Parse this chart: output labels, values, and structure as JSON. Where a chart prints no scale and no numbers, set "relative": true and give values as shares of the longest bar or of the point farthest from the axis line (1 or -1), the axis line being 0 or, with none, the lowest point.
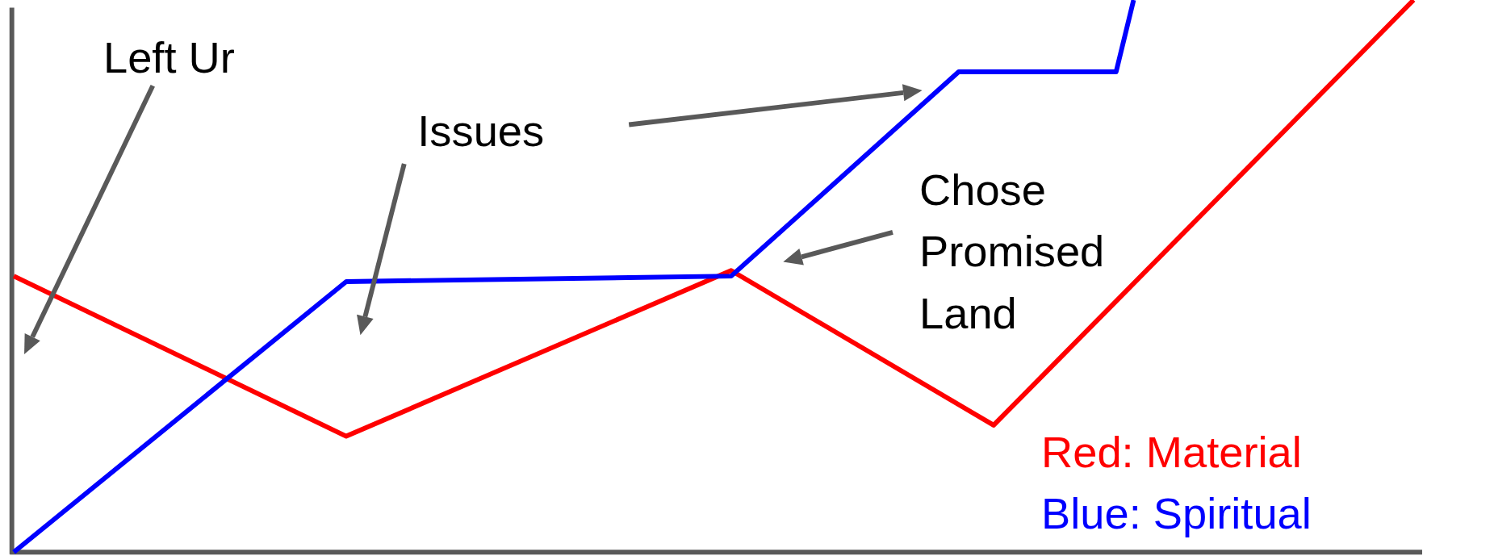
{
  "chart_data": {
    "type": "line",
    "relative": true,
    "categories": [
      null,
      null,
      null,
      null,
      null,
      null,
      null,
      null,
      null,
      null,
      null,
      null,
      null,
      null,
      null,
      null,
      null,
      null,
      null,
      null,
      null,
      null,
      null,
      null,
      null,
      null,
      null,
      null,
      null,
      null,
      null,
      null,
      null,
      null,
      null,
      null,
      null,
      null,
      null,
      null,
      null,
      null,
      null,
      null,
      null,
      null,
      null,
      null,
      null,
      null,
      null,
      null,
      null,
      null,
      null,
      null,
      null,
      null,
      null,
      null,
      null,
      null,
      null,
      null,
      null,
      null,
      null,
      null,
      null,
      null,
      null,
      null,
      null,
      null,
      null,
      null,
      null,
      null,
      null,
      null,
      null
    ],
    "annotations": [
      "Left Ur",
      "Issues",
      "Chose Promised Land"
    ],
    "series": [
      {
        "name": "Red: Material",
        "color": "#ff0000",
        "values": [
          0.5,
          null,
          null,
          null,
          null,
          null,
          null,
          null,
          null,
          null,
          null,
          null,
          null,
          null,
          null,
          null,
          null,
          null,
          null,
          0.21,
          null,
          null,
          null,
          null,
          null,
          null,
          null,
          null,
          null,
          null,
          null,
          null,
          null,
          null,
          null,
          null,
          null,
          null,
          null,
          null,
          null,
          0.51,
          null,
          null,
          null,
          null,
          null,
          null,
          null,
          null,
          null,
          null,
          null,
          null,
          null,
          null,
          0.23,
          null,
          null,
          null,
          null,
          null,
          null,
          null,
          null,
          null,
          null,
          null,
          null,
          null,
          null,
          null,
          null,
          null,
          null,
          null,
          null,
          null,
          null,
          null,
          1.0
        ]
      },
      {
        "name": "Blue: Spiritual",
        "color": "#0000ff",
        "values": [
          0,
          null,
          null,
          null,
          null,
          null,
          null,
          null,
          null,
          null,
          null,
          null,
          null,
          null,
          null,
          null,
          null,
          null,
          null,
          0.49,
          null,
          null,
          null,
          null,
          null,
          null,
          null,
          null,
          null,
          null,
          null,
          null,
          null,
          null,
          null,
          null,
          null,
          null,
          null,
          null,
          null,
          0.5,
          null,
          null,
          null,
          null,
          null,
          null,
          null,
          null,
          null,
          null,
          null,
          null,
          0.87,
          null,
          null,
          null,
          null,
          null,
          null,
          null,
          null,
          0.87,
          1.0,
          null,
          null,
          null,
          null,
          null,
          null,
          null,
          null,
          null,
          null,
          null,
          null,
          null,
          null,
          null,
          null
        ]
      }
    ]
  }
}
